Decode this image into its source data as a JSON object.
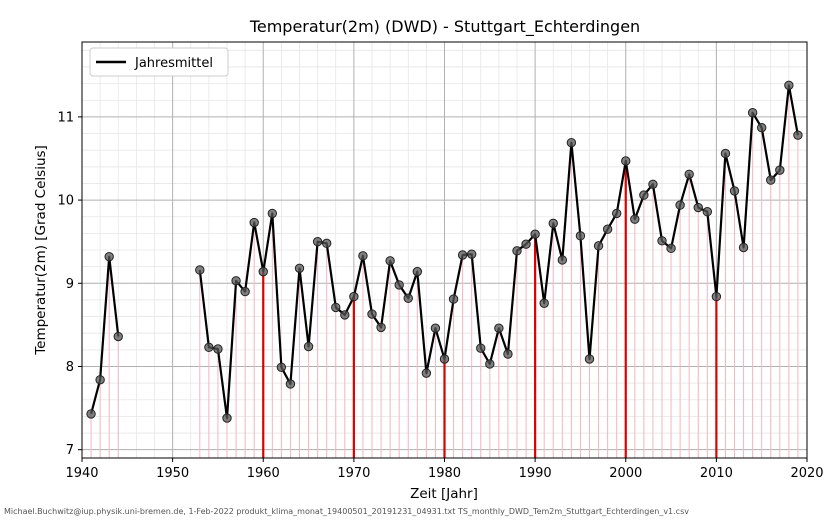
{
  "chart_data": {
    "type": "line",
    "title": "Temperatur(2m) (DWD) - Stuttgart_Echterdingen",
    "xlabel": "Zeit [Jahr]",
    "ylabel": "Temperatur(2m) [Grad Celsius]",
    "xlim": [
      1940,
      2020
    ],
    "ylim": [
      6.9,
      11.9
    ],
    "x_ticks": [
      1940,
      1950,
      1960,
      1970,
      1980,
      1990,
      2000,
      2010,
      2020
    ],
    "y_ticks": [
      7,
      8,
      9,
      10,
      11
    ],
    "grid": "major and minor",
    "legend_position": "top-left",
    "highlight_decades": [
      1960,
      1970,
      1980,
      1990,
      2000,
      2010
    ],
    "series": [
      {
        "name": "Jahresmittel",
        "color": "#000000",
        "segments": [
          {
            "x": [
              1941,
              1942,
              1943,
              1944
            ],
            "y": [
              7.43,
              7.84,
              9.32,
              8.36
            ]
          },
          {
            "x": [
              1953,
              1954,
              1955,
              1956,
              1957,
              1958,
              1959,
              1960,
              1961,
              1962,
              1963,
              1964,
              1965,
              1966,
              1967,
              1968,
              1969,
              1970,
              1971,
              1972,
              1973,
              1974,
              1975,
              1976,
              1977,
              1978,
              1979,
              1980,
              1981,
              1982,
              1983,
              1984,
              1985,
              1986,
              1987,
              1988,
              1989,
              1990,
              1991,
              1992,
              1993,
              1994,
              1995,
              1996,
              1997,
              1998,
              1999,
              2000,
              2001,
              2002,
              2003,
              2004,
              2005,
              2006,
              2007,
              2008,
              2009,
              2010,
              2011,
              2012,
              2013,
              2014,
              2015,
              2016,
              2017,
              2018,
              2019
            ],
            "y": [
              9.16,
              8.23,
              8.21,
              7.38,
              9.03,
              8.9,
              9.73,
              9.14,
              9.84,
              7.99,
              7.79,
              9.18,
              8.24,
              9.5,
              9.48,
              8.71,
              8.62,
              8.84,
              9.33,
              8.63,
              8.47,
              9.27,
              8.98,
              8.82,
              9.14,
              7.92,
              8.46,
              8.09,
              8.81,
              9.34,
              9.35,
              8.22,
              8.03,
              8.46,
              8.15,
              9.39,
              9.47,
              9.59,
              8.76,
              9.72,
              9.28,
              10.69,
              9.57,
              8.09,
              9.45,
              9.65,
              9.84,
              10.47,
              9.77,
              10.06,
              10.19,
              9.51,
              9.42,
              9.94,
              10.31,
              9.91,
              9.86,
              8.84,
              10.56,
              10.11,
              9.43,
              11.05,
              10.87,
              10.24,
              10.36,
              11.38,
              10.78
            ]
          }
        ]
      }
    ]
  },
  "footer": "Michael.Buchwitz@iup.physik.uni-bremen.de, 1-Feb-2022 produkt_klima_monat_19400501_20191231_04931.txt TS_monthly_DWD_Tem2m_Stuttgart_Echterdingen_v1.csv"
}
